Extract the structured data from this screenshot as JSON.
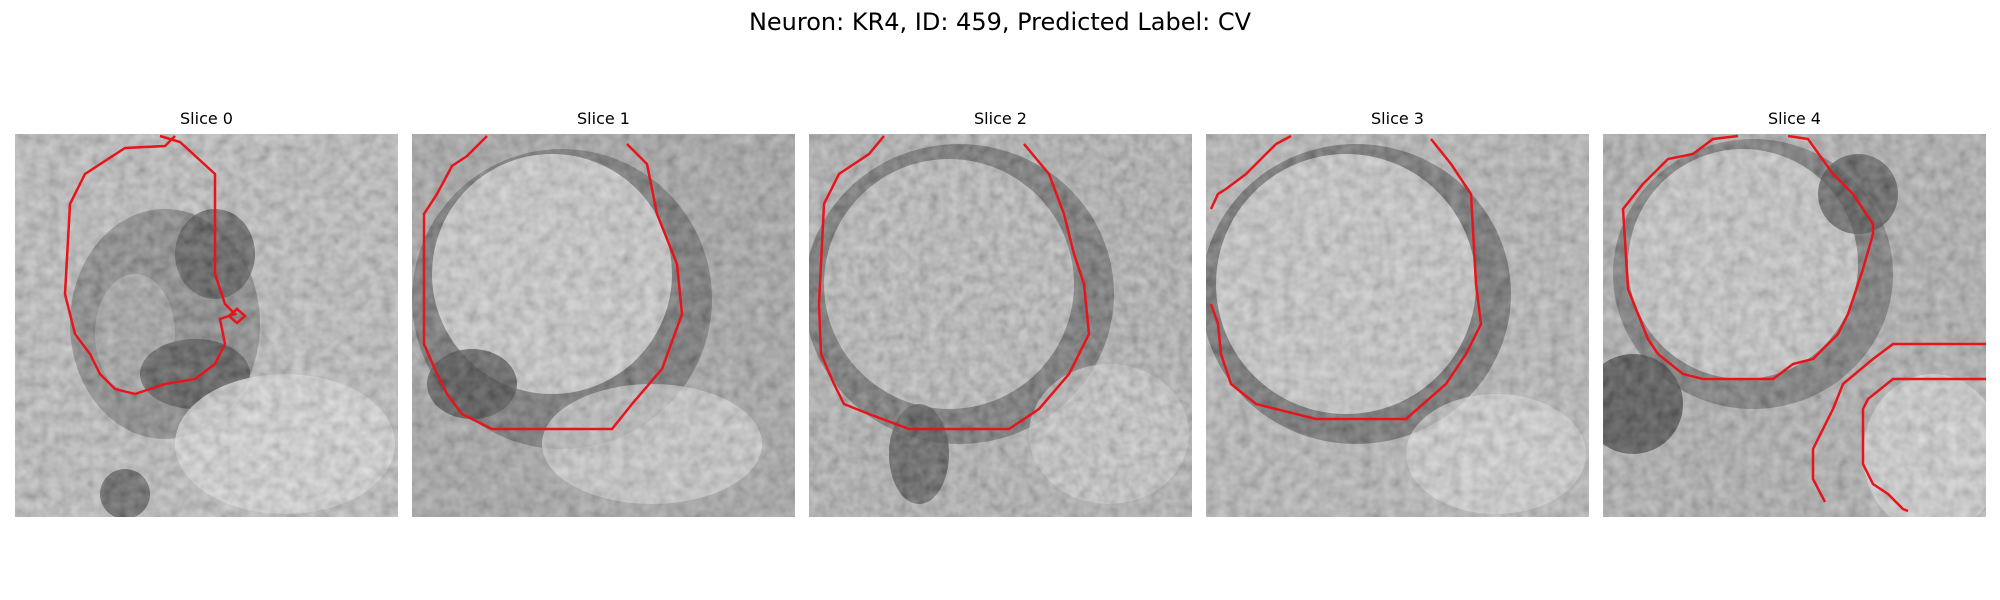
{
  "figure": {
    "title": "Neuron: KR4, ID: 459, Predicted Label: CV"
  },
  "panels": [
    {
      "title": "Slice 0"
    },
    {
      "title": "Slice 1"
    },
    {
      "title": "Slice 2"
    },
    {
      "title": "Slice 3"
    },
    {
      "title": "Slice 4"
    }
  ],
  "colors": {
    "contour": "#e8141c",
    "background": "#ffffff"
  }
}
